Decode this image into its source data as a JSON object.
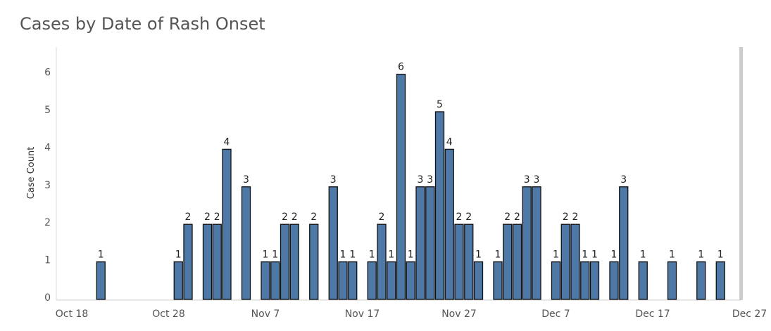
{
  "chart_data": {
    "type": "bar",
    "title": "Cases by Date of Rash Onset",
    "xlabel": "",
    "ylabel": "Case Count",
    "x_ticks": [
      "Oct 18",
      "Oct 28",
      "Nov 7",
      "Nov 17",
      "Nov 27",
      "Dec 7",
      "Dec 17",
      "Dec 27"
    ],
    "y_ticks": [
      0,
      1,
      2,
      3,
      4,
      5,
      6
    ],
    "ylim": [
      0,
      6
    ],
    "bar_color": "#4e79a7",
    "bars": [
      {
        "date": "Oct 21",
        "value": 1
      },
      {
        "date": "Oct 29",
        "value": 1
      },
      {
        "date": "Oct 30",
        "value": 2
      },
      {
        "date": "Nov 1",
        "value": 2
      },
      {
        "date": "Nov 2",
        "value": 2
      },
      {
        "date": "Nov 3",
        "value": 4
      },
      {
        "date": "Nov 5",
        "value": 3
      },
      {
        "date": "Nov 7",
        "value": 1
      },
      {
        "date": "Nov 8",
        "value": 1
      },
      {
        "date": "Nov 9",
        "value": 2
      },
      {
        "date": "Nov 10",
        "value": 2
      },
      {
        "date": "Nov 12",
        "value": 2
      },
      {
        "date": "Nov 14",
        "value": 3
      },
      {
        "date": "Nov 15",
        "value": 1
      },
      {
        "date": "Nov 16",
        "value": 1
      },
      {
        "date": "Nov 18",
        "value": 1
      },
      {
        "date": "Nov 19",
        "value": 2
      },
      {
        "date": "Nov 20",
        "value": 1
      },
      {
        "date": "Nov 21",
        "value": 6
      },
      {
        "date": "Nov 22",
        "value": 1
      },
      {
        "date": "Nov 23",
        "value": 3
      },
      {
        "date": "Nov 24",
        "value": 3
      },
      {
        "date": "Nov 25",
        "value": 5
      },
      {
        "date": "Nov 26",
        "value": 4
      },
      {
        "date": "Nov 27",
        "value": 2
      },
      {
        "date": "Nov 28",
        "value": 2
      },
      {
        "date": "Nov 29",
        "value": 1
      },
      {
        "date": "Dec 1",
        "value": 1
      },
      {
        "date": "Dec 2",
        "value": 2
      },
      {
        "date": "Dec 3",
        "value": 2
      },
      {
        "date": "Dec 4",
        "value": 3
      },
      {
        "date": "Dec 5",
        "value": 3
      },
      {
        "date": "Dec 7",
        "value": 1
      },
      {
        "date": "Dec 8",
        "value": 2
      },
      {
        "date": "Dec 9",
        "value": 2
      },
      {
        "date": "Dec 10",
        "value": 1
      },
      {
        "date": "Dec 11",
        "value": 1
      },
      {
        "date": "Dec 13",
        "value": 1
      },
      {
        "date": "Dec 14",
        "value": 3
      },
      {
        "date": "Dec 16",
        "value": 1
      },
      {
        "date": "Dec 19",
        "value": 1
      },
      {
        "date": "Dec 22",
        "value": 1
      },
      {
        "date": "Dec 24",
        "value": 1
      }
    ]
  }
}
